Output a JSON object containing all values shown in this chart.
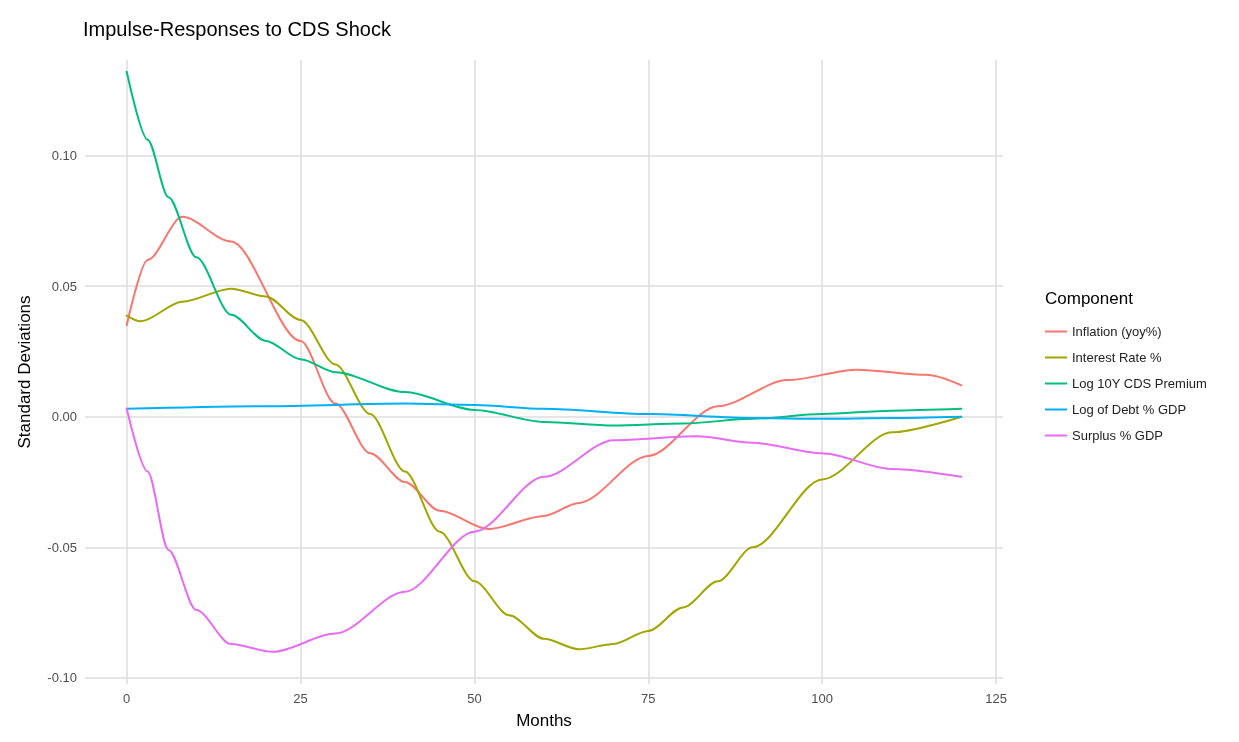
{
  "chart_data": {
    "type": "line",
    "title": "Impulse-Responses to CDS Shock",
    "xlabel": "Months",
    "ylabel": "Standard Deviations",
    "legend_title": "Component",
    "legend": "right",
    "grid": true,
    "marker": "none",
    "line_style": "solid",
    "xlim": [
      -6,
      126
    ],
    "xticks": [
      0,
      25,
      50,
      75,
      100,
      125
    ],
    "ylim": [
      -0.1023,
      0.1365
    ],
    "yticks": [
      {
        "value": -0.1,
        "label": "-0.10"
      },
      {
        "value": -0.05,
        "label": "-0.05"
      },
      {
        "value": 0,
        "label": "0.00"
      },
      {
        "value": 0.05,
        "label": "0.05"
      },
      {
        "value": 0.1,
        "label": "0.10"
      }
    ],
    "series": [
      {
        "name": "Inflation (yoy%)",
        "color": "#f8766d",
        "x": [
          0,
          3,
          8,
          15,
          25,
          30,
          35,
          40,
          45,
          52,
          60,
          65,
          75,
          85,
          95,
          105,
          115,
          120
        ],
        "values": [
          0.035,
          0.06,
          0.0765,
          0.067,
          0.029,
          0.005,
          -0.014,
          -0.025,
          -0.036,
          -0.043,
          -0.038,
          -0.033,
          -0.015,
          0.004,
          0.014,
          0.018,
          0.016,
          0.012
        ]
      },
      {
        "name": "Interest Rate %",
        "color": "#a3a500",
        "x": [
          0,
          2,
          8,
          15,
          20,
          25,
          30,
          35,
          40,
          45,
          50,
          55,
          60,
          65,
          70,
          75,
          80,
          85,
          90,
          100,
          110,
          120
        ],
        "values": [
          0.0387,
          0.0365,
          0.044,
          0.049,
          0.046,
          0.037,
          0.02,
          0.001,
          -0.021,
          -0.044,
          -0.063,
          -0.076,
          -0.085,
          -0.089,
          -0.087,
          -0.082,
          -0.073,
          -0.063,
          -0.05,
          -0.024,
          -0.006,
          0
        ]
      },
      {
        "name": "Log 10Y CDS Premium",
        "color": "#00bf7d",
        "x": [
          0,
          3,
          6,
          10,
          15,
          20,
          25,
          30,
          40,
          50,
          60,
          70,
          80,
          90,
          100,
          110,
          120
        ],
        "values": [
          0.132,
          0.106,
          0.084,
          0.061,
          0.039,
          0.029,
          0.022,
          0.017,
          0.0094,
          0.0026,
          -0.002,
          -0.0034,
          -0.0026,
          -0.0008,
          0.001,
          0.0023,
          0.003
        ]
      },
      {
        "name": "Log of Debt % GDP",
        "color": "#00b0f6",
        "x": [
          0,
          20,
          40,
          50,
          60,
          75,
          90,
          100,
          110,
          120
        ],
        "values": [
          0.003,
          0.004,
          0.005,
          0.0045,
          0.003,
          0.001,
          -0.0005,
          -0.0008,
          -0.0005,
          0
        ]
      },
      {
        "name": "Surplus % GDP",
        "color": "#e76bf3",
        "x": [
          0,
          3,
          6,
          10,
          15,
          21,
          30,
          40,
          50,
          60,
          70,
          82,
          90,
          100,
          110,
          120
        ],
        "values": [
          0.003,
          -0.021,
          -0.051,
          -0.074,
          -0.087,
          -0.09,
          -0.083,
          -0.067,
          -0.044,
          -0.023,
          -0.009,
          -0.0075,
          -0.01,
          -0.014,
          -0.02,
          -0.023
        ]
      }
    ]
  }
}
